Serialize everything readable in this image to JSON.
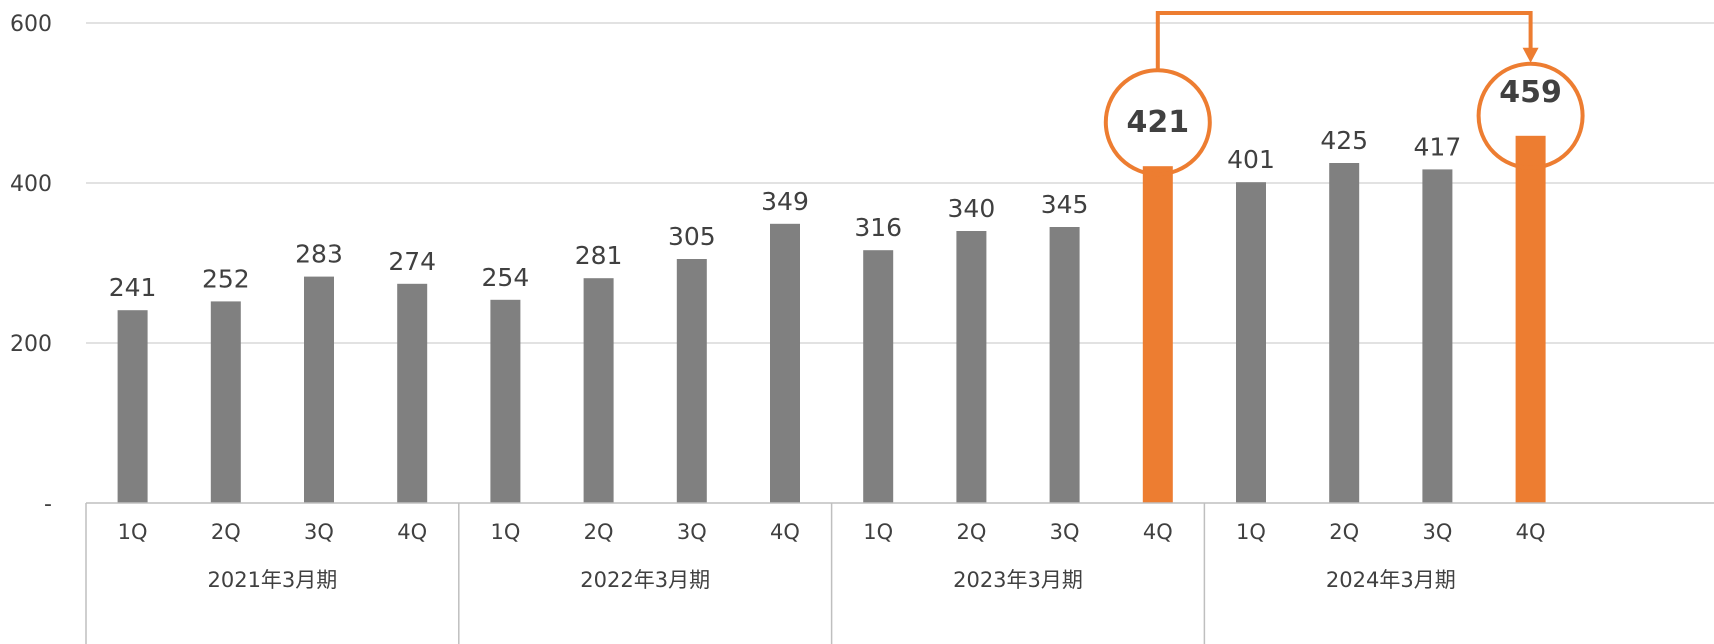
{
  "chart_data": {
    "type": "bar",
    "y_ticks": [
      "-",
      "200",
      "400",
      "600"
    ],
    "y_tick_values": [
      0,
      200,
      400,
      600
    ],
    "ylim": [
      0,
      600
    ],
    "grid": true,
    "legend": "none",
    "groups": [
      {
        "label": "2021年3月期",
        "categories": [
          "1Q",
          "2Q",
          "3Q",
          "4Q"
        ],
        "values": [
          241,
          252,
          283,
          274
        ],
        "highlight": [
          false,
          false,
          false,
          false
        ]
      },
      {
        "label": "2022年3月期",
        "categories": [
          "1Q",
          "2Q",
          "3Q",
          "4Q"
        ],
        "values": [
          254,
          281,
          305,
          349
        ],
        "highlight": [
          false,
          false,
          false,
          false
        ]
      },
      {
        "label": "2023年3月期",
        "categories": [
          "1Q",
          "2Q",
          "3Q",
          "4Q"
        ],
        "values": [
          316,
          340,
          345,
          421
        ],
        "highlight": [
          false,
          false,
          false,
          true
        ]
      },
      {
        "label": "2024年3月期",
        "categories": [
          "1Q",
          "2Q",
          "3Q",
          "4Q"
        ],
        "values": [
          401,
          425,
          417,
          459
        ],
        "highlight": [
          false,
          false,
          false,
          true
        ]
      }
    ],
    "colors": {
      "bar": "#808080",
      "highlight": "#ED7D31",
      "gridline": "#D9D9D9",
      "axis": "#BFBFBF",
      "text": "#404040"
    },
    "annotation": {
      "type": "comparison-arrow",
      "from": {
        "group": 2,
        "index": 3
      },
      "to": {
        "group": 3,
        "index": 3
      }
    }
  }
}
